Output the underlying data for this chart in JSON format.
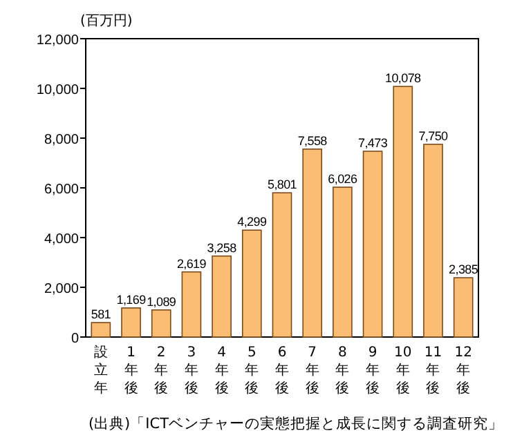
{
  "chart_data": {
    "type": "bar",
    "ylabel": "(百万円)",
    "categories": [
      "設立年",
      "1年後",
      "2年後",
      "3年後",
      "4年後",
      "5年後",
      "6年後",
      "7年後",
      "8年後",
      "9年後",
      "10年後",
      "11年後",
      "12年後"
    ],
    "values": [
      581,
      1169,
      1089,
      2619,
      3258,
      4299,
      5801,
      7558,
      6026,
      7473,
      10078,
      7750,
      2385
    ],
    "color": "#fbbd74",
    "ylim": [
      0,
      12000
    ],
    "yticks": [
      {
        "value": 0,
        "label": "0"
      },
      {
        "value": 2000,
        "label": "2,000"
      },
      {
        "value": 4000,
        "label": "4,000"
      },
      {
        "value": 6000,
        "label": "6,000"
      },
      {
        "value": 8000,
        "label": "8,000"
      },
      {
        "value": 10000,
        "label": "10,000"
      },
      {
        "value": 12000,
        "label": "12,000"
      }
    ],
    "value_labels": [
      "581",
      "1,169",
      "1,089",
      "2,619",
      "3,258",
      "4,299",
      "5,801",
      "7,558",
      "6,026",
      "7,473",
      "10,078",
      "7,750",
      "2,385"
    ],
    "annotations": [
      "(出典)「ICTベンチャーの実態把握と成長に関する調査研究」"
    ]
  }
}
